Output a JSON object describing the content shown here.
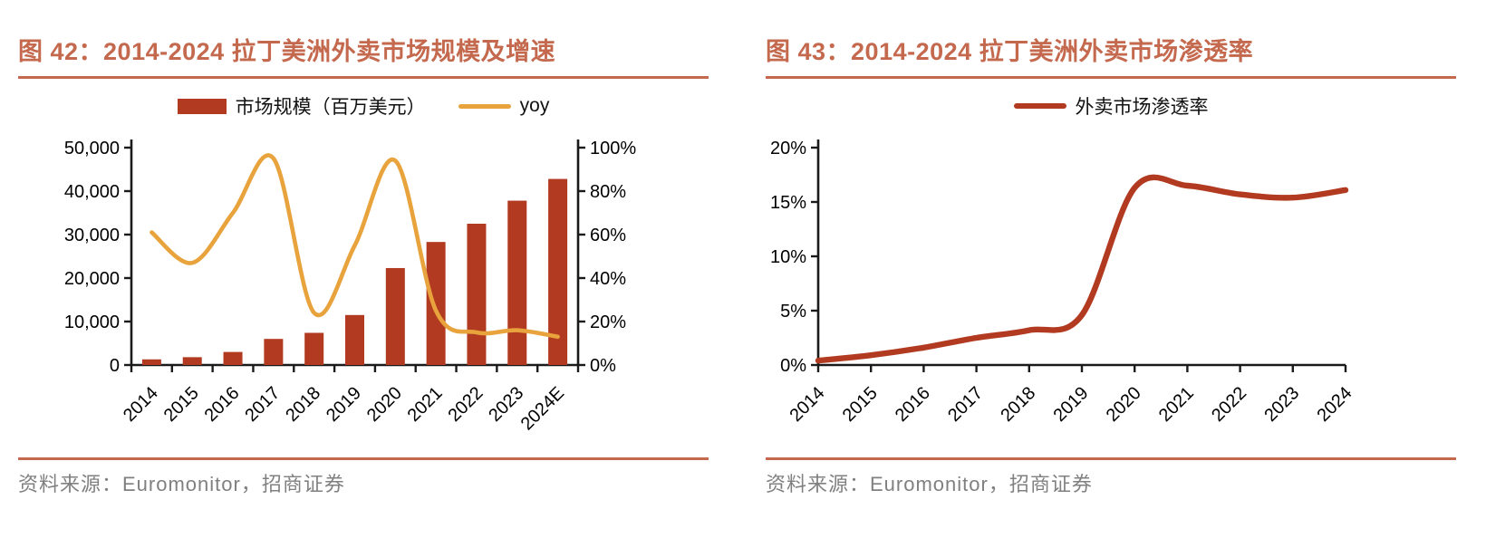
{
  "page": {
    "background": "#ffffff"
  },
  "colors": {
    "brick": "#B13A20",
    "amber": "#E8A33D",
    "title": "#C4694E",
    "rule": "#C4694E",
    "source_text": "#808080",
    "axis": "#1A1A1A"
  },
  "figures": [
    {
      "id": "fig-42",
      "title": "图 42：2014-2024 拉丁美洲外卖市场规模及增速",
      "source": "资料来源：Euromonitor，招商证券"
    },
    {
      "id": "fig-43",
      "title": "图 43：2014-2024 拉丁美洲外卖市场渗透率",
      "source": "资料来源：Euromonitor，招商证券"
    }
  ],
  "chart_data": [
    {
      "type": "bar",
      "title": "2014-2024 拉丁美洲外卖市场规模及增速",
      "categories": [
        "2014",
        "2015",
        "2016",
        "2017",
        "2018",
        "2019",
        "2020",
        "2021",
        "2022",
        "2023",
        "2024E"
      ],
      "series": [
        {
          "name": "市场规模（百万美元）",
          "kind": "bar",
          "axis": "left",
          "color": "#B13A20",
          "values": [
            1300,
            1800,
            3000,
            6000,
            7400,
            11500,
            22300,
            28300,
            32500,
            37800,
            42800
          ]
        },
        {
          "name": "yoy",
          "kind": "line",
          "axis": "right",
          "color": "#E8A33D",
          "unit": "%",
          "values": [
            61,
            47,
            70,
            95,
            24,
            55,
            94,
            25,
            15,
            16,
            13
          ]
        }
      ],
      "left_axis": {
        "min": 0,
        "max": 50000,
        "tick_labels": [
          "0",
          "10,000",
          "20,000",
          "30,000",
          "40,000",
          "50,000"
        ]
      },
      "right_axis": {
        "min": 0,
        "max": 100,
        "unit": "%",
        "tick_labels": [
          "0%",
          "20%",
          "40%",
          "60%",
          "80%",
          "100%"
        ]
      },
      "legend_position": "top",
      "grid": false
    },
    {
      "type": "line",
      "title": "2014-2024 拉丁美洲外卖市场渗透率",
      "categories": [
        "2014",
        "2015",
        "2016",
        "2017",
        "2018",
        "2019",
        "2020",
        "2021",
        "2022",
        "2023",
        "2024"
      ],
      "series": [
        {
          "name": "外卖市场渗透率",
          "kind": "line",
          "color": "#B13A20",
          "unit": "%",
          "values": [
            0.4,
            0.9,
            1.6,
            2.5,
            3.2,
            4.6,
            16.3,
            16.5,
            15.7,
            15.4,
            16.1
          ]
        }
      ],
      "y_axis": {
        "min": 0,
        "max": 20,
        "unit": "%",
        "tick_labels": [
          "0%",
          "5%",
          "10%",
          "15%",
          "20%"
        ]
      },
      "legend_position": "top",
      "grid": false
    }
  ]
}
